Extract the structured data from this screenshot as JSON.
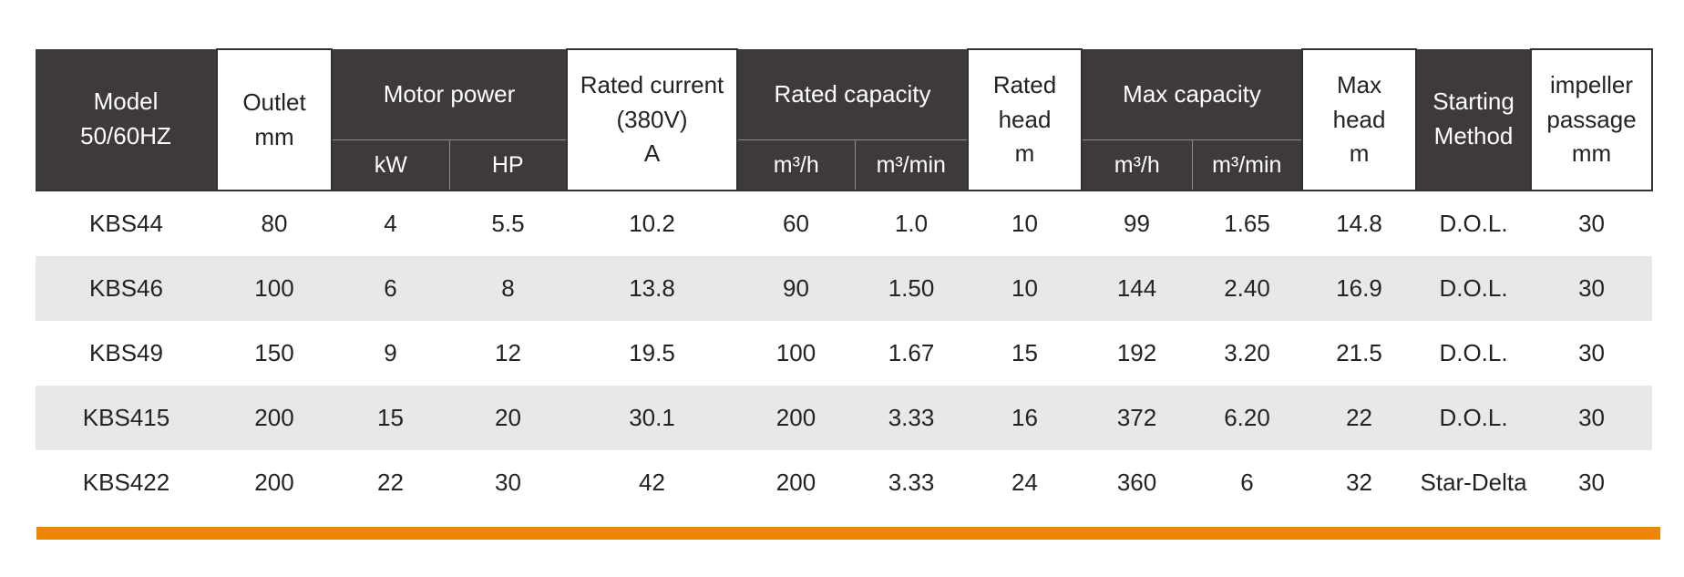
{
  "page": {
    "background_color": "#ffffff",
    "header_bg_color": "#3e3a39",
    "stripe_bg_color": "#e9e8e8",
    "accent_bar_color": "#ef8600"
  },
  "table": {
    "header": {
      "model": "Model\n50/60HZ",
      "outlet": "Outlet\nmm",
      "motor_power": "Motor power",
      "motor_power_subs": [
        "kW",
        "HP"
      ],
      "rated_current": "Rated current\n(380V)\nA",
      "rated_capacity": "Rated capacity",
      "rated_capacity_subs": [
        "m³/h",
        "m³/min"
      ],
      "rated_head": "Rated\nhead\nm",
      "max_capacity": "Max capacity",
      "max_capacity_subs": [
        "m³/h",
        "m³/min"
      ],
      "max_head": "Max\nhead\nm",
      "starting_method": "Starting\nMethod",
      "impeller_passage": "impeller\npassage\nmm"
    },
    "rows": [
      [
        "KBS44",
        "80",
        "4",
        "5.5",
        "10.2",
        "60",
        "1.0",
        "10",
        "99",
        "1.65",
        "14.8",
        "D.O.L.",
        "30"
      ],
      [
        "KBS46",
        "100",
        "6",
        "8",
        "13.8",
        "90",
        "1.50",
        "10",
        "144",
        "2.40",
        "16.9",
        "D.O.L.",
        "30"
      ],
      [
        "KBS49",
        "150",
        "9",
        "12",
        "19.5",
        "100",
        "1.67",
        "15",
        "192",
        "3.20",
        "21.5",
        "D.O.L.",
        "30"
      ],
      [
        "KBS415",
        "200",
        "15",
        "20",
        "30.1",
        "200",
        "3.33",
        "16",
        "372",
        "6.20",
        "22",
        "D.O.L.",
        "30"
      ],
      [
        "KBS422",
        "200",
        "22",
        "30",
        "42",
        "200",
        "3.33",
        "24",
        "360",
        "6",
        "32",
        "Star-Delta",
        "30"
      ]
    ]
  }
}
